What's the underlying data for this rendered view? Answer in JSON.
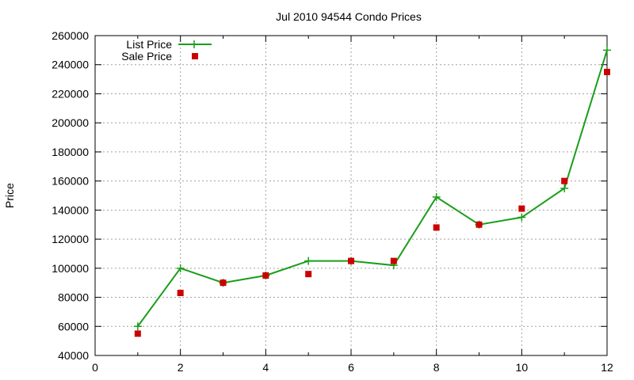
{
  "chart_data": {
    "type": "line",
    "title": "Jul 2010 94544 Condo Prices",
    "xlabel": "",
    "ylabel": "Price",
    "xlim": [
      0,
      12
    ],
    "ylim": [
      40000,
      260000
    ],
    "x_ticks": [
      "0",
      "2",
      "4",
      "6",
      "8",
      "10",
      "12"
    ],
    "y_ticks": [
      "40000",
      "60000",
      "80000",
      "100000",
      "120000",
      "140000",
      "160000",
      "180000",
      "200000",
      "220000",
      "240000",
      "260000"
    ],
    "grid": true,
    "legend_position": "top-left",
    "series": [
      {
        "name": "List Price",
        "style": "line with plus markers",
        "color": "#1a9e1a",
        "x": [
          1,
          2,
          3,
          4,
          5,
          6,
          7,
          8,
          9,
          10,
          11,
          12
        ],
        "y": [
          60000,
          100000,
          90000,
          95000,
          105000,
          105000,
          102000,
          149000,
          130000,
          135000,
          155000,
          250000
        ]
      },
      {
        "name": "Sale Price",
        "style": "square markers",
        "color": "#cc0000",
        "x": [
          1,
          2,
          3,
          4,
          5,
          6,
          7,
          8,
          9,
          10,
          11,
          12
        ],
        "y": [
          55000,
          83000,
          90000,
          95000,
          96000,
          105000,
          105000,
          128000,
          130000,
          141000,
          160000,
          235000
        ]
      }
    ]
  }
}
